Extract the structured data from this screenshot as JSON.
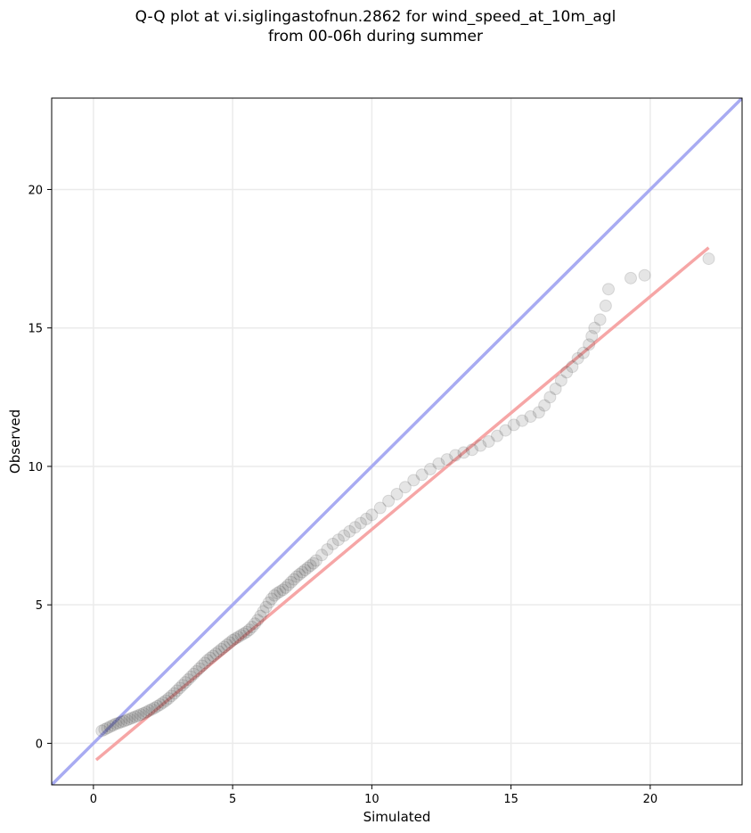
{
  "chart_data": {
    "type": "scatter",
    "title_line1": "Q-Q plot at vi.siglingastofnun.2862 for wind_speed_at_10m_agl",
    "title_line2": "from 00-06h during summer",
    "xlabel": "Simulated",
    "ylabel": "Observed",
    "xlim": [
      -1.5,
      23.3
    ],
    "ylim": [
      -1.5,
      23.3
    ],
    "x_ticks": [
      0,
      5,
      10,
      15,
      20
    ],
    "y_ticks": [
      0,
      5,
      10,
      15,
      20
    ],
    "grid": true,
    "identity_line": {
      "name": "1:1 line",
      "color": "#a8abf2",
      "from": [
        -1.5,
        -1.5
      ],
      "to": [
        23.3,
        23.3
      ]
    },
    "fit_line": {
      "name": "linear fit",
      "color": "#f6a6a6",
      "from": [
        0.1,
        -0.6
      ],
      "to": [
        22.1,
        17.9
      ]
    },
    "points": {
      "color": "#333333",
      "x": [
        0.3,
        0.4,
        0.5,
        0.6,
        0.7,
        0.8,
        0.9,
        1.0,
        1.1,
        1.2,
        1.3,
        1.4,
        1.5,
        1.6,
        1.7,
        1.8,
        1.9,
        2.0,
        2.1,
        2.2,
        2.3,
        2.4,
        2.5,
        2.6,
        2.7,
        2.8,
        2.9,
        3.0,
        3.1,
        3.2,
        3.3,
        3.4,
        3.5,
        3.6,
        3.7,
        3.8,
        3.9,
        4.0,
        4.1,
        4.2,
        4.3,
        4.4,
        4.5,
        4.6,
        4.7,
        4.8,
        4.9,
        5.0,
        5.1,
        5.2,
        5.3,
        5.4,
        5.5,
        5.6,
        5.7,
        5.8,
        5.9,
        6.0,
        6.1,
        6.2,
        6.3,
        6.4,
        6.5,
        6.6,
        6.7,
        6.8,
        6.9,
        7.0,
        7.1,
        7.2,
        7.3,
        7.4,
        7.5,
        7.6,
        7.7,
        7.8,
        7.9,
        8.0,
        8.2,
        8.4,
        8.6,
        8.8,
        9.0,
        9.2,
        9.4,
        9.6,
        9.8,
        10.0,
        10.3,
        10.6,
        10.9,
        11.2,
        11.5,
        11.8,
        12.1,
        12.4,
        12.7,
        13.0,
        13.3,
        13.6,
        13.9,
        14.2,
        14.5,
        14.8,
        15.1,
        15.4,
        15.7,
        16.0,
        16.2,
        16.4,
        16.6,
        16.8,
        17.0,
        17.2,
        17.4,
        17.6,
        17.8,
        17.9,
        18.0,
        18.2,
        18.4,
        18.5,
        19.3,
        19.8,
        22.1
      ],
      "y": [
        0.45,
        0.5,
        0.55,
        0.6,
        0.65,
        0.7,
        0.73,
        0.77,
        0.8,
        0.84,
        0.88,
        0.92,
        0.96,
        1.0,
        1.04,
        1.08,
        1.13,
        1.18,
        1.23,
        1.28,
        1.34,
        1.4,
        1.47,
        1.54,
        1.62,
        1.71,
        1.8,
        1.9,
        2.0,
        2.1,
        2.2,
        2.3,
        2.4,
        2.5,
        2.6,
        2.7,
        2.8,
        2.9,
        3.0,
        3.08,
        3.16,
        3.24,
        3.32,
        3.4,
        3.48,
        3.56,
        3.64,
        3.72,
        3.78,
        3.84,
        3.9,
        3.96,
        4.02,
        4.1,
        4.2,
        4.32,
        4.45,
        4.6,
        4.76,
        4.92,
        5.08,
        5.22,
        5.34,
        5.42,
        5.48,
        5.54,
        5.62,
        5.72,
        5.82,
        5.92,
        6.02,
        6.1,
        6.18,
        6.26,
        6.34,
        6.42,
        6.5,
        6.6,
        6.8,
        7.0,
        7.2,
        7.35,
        7.5,
        7.65,
        7.8,
        7.95,
        8.1,
        8.25,
        8.5,
        8.75,
        9.0,
        9.25,
        9.5,
        9.7,
        9.9,
        10.1,
        10.25,
        10.4,
        10.5,
        10.6,
        10.75,
        10.9,
        11.1,
        11.3,
        11.5,
        11.65,
        11.8,
        11.95,
        12.2,
        12.5,
        12.8,
        13.1,
        13.4,
        13.6,
        13.9,
        14.1,
        14.4,
        14.7,
        15.0,
        15.3,
        15.8,
        16.4,
        16.8,
        16.9,
        17.5
      ]
    }
  }
}
